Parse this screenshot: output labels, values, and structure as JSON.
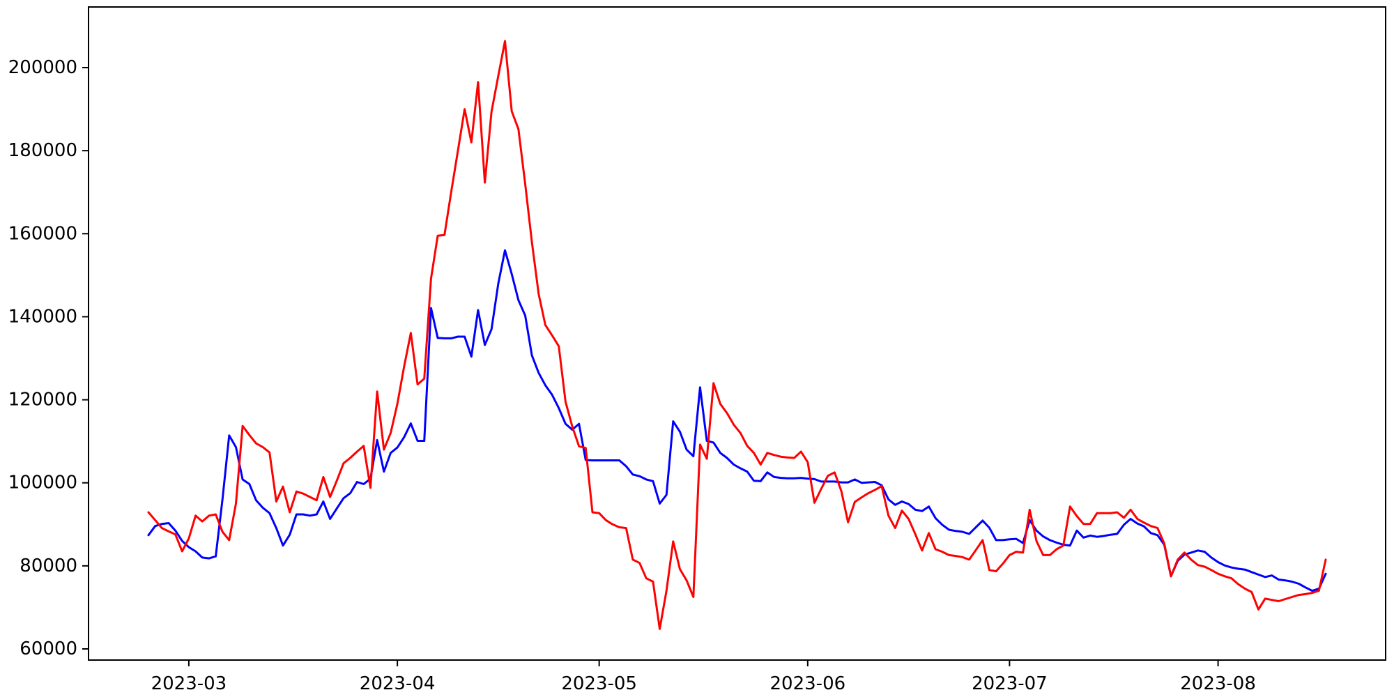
{
  "figure": {
    "background": "#ffffff",
    "frame_color": "#000000"
  },
  "chart_data": {
    "type": "line",
    "title": "",
    "xlabel": "",
    "ylabel": "",
    "grid": false,
    "legend": "none",
    "x_range": [
      "2023-02-23",
      "2023-08-17"
    ],
    "x_freq": "daily",
    "ylim": [
      55000,
      212000
    ],
    "y_ticks": [
      60000,
      80000,
      100000,
      120000,
      140000,
      160000,
      180000,
      200000
    ],
    "y_tick_labels": [
      "60000",
      "80000",
      "100000",
      "120000",
      "140000",
      "160000",
      "180000",
      "200000"
    ],
    "x_ticks": [
      {
        "label": "2023-03",
        "date": "2023-03-01"
      },
      {
        "label": "2023-04",
        "date": "2023-04-01"
      },
      {
        "label": "2023-05",
        "date": "2023-05-01"
      },
      {
        "label": "2023-06",
        "date": "2023-06-01"
      },
      {
        "label": "2023-07",
        "date": "2023-07-01"
      },
      {
        "label": "2023-08",
        "date": "2023-08-01"
      }
    ],
    "series": [
      {
        "name": "blue",
        "color": "#0000ff",
        "values": [
          87400,
          89600,
          90100,
          90300,
          88500,
          86000,
          84500,
          83500,
          82000,
          81800,
          82300,
          96000,
          111400,
          108600,
          100800,
          99700,
          95800,
          94000,
          92700,
          89100,
          84900,
          87500,
          92400,
          92400,
          92100,
          92400,
          95500,
          91300,
          93800,
          96300,
          97500,
          100200,
          99700,
          101000,
          110300,
          102700,
          107200,
          108500,
          111000,
          114300,
          110100,
          110100,
          142100,
          134900,
          134800,
          134800,
          135200,
          135200,
          130400,
          141600,
          133200,
          137000,
          148000,
          156000,
          150300,
          144000,
          140300,
          130700,
          126500,
          123500,
          121200,
          118000,
          114200,
          112800,
          114200,
          105500,
          105400,
          105400,
          105400,
          105400,
          105400,
          104000,
          102000,
          101600,
          100800,
          100400,
          95000,
          97100,
          114800,
          112300,
          108000,
          106400,
          123000,
          110100,
          109700,
          107200,
          106000,
          104400,
          103500,
          102700,
          100500,
          100400,
          102500,
          101400,
          101200,
          101100,
          101100,
          101200,
          101000,
          100900,
          100300,
          100300,
          100300,
          100100,
          100100,
          100800,
          100000,
          100100,
          100200,
          99400,
          96000,
          94700,
          95500,
          94900,
          93500,
          93200,
          94300,
          91500,
          89900,
          88700,
          88400,
          88200,
          87700,
          89300,
          90900,
          89200,
          86200,
          86200,
          86400,
          86500,
          85500,
          91000,
          88500,
          87100,
          86200,
          85600,
          85100,
          84900,
          88500,
          86800,
          87300,
          87000,
          87200,
          87500,
          87700,
          89900,
          91300,
          90200,
          89500,
          87900,
          87400,
          85100,
          77500,
          81200,
          82700,
          83200,
          83700,
          83400,
          82000,
          80900,
          80100,
          79600,
          79300,
          79100,
          78500,
          77900,
          77300,
          77700,
          76700,
          76500,
          76200,
          75700,
          74800,
          74000,
          74500,
          78100
        ]
      },
      {
        "name": "red",
        "color": "#ff0000",
        "values": [
          92900,
          91000,
          89100,
          88300,
          87600,
          83500,
          86600,
          92100,
          90700,
          92100,
          92400,
          88200,
          86200,
          95000,
          113700,
          111500,
          109500,
          108600,
          107300,
          95500,
          99100,
          92900,
          97900,
          97400,
          96600,
          95800,
          101400,
          96600,
          100500,
          104700,
          106000,
          107500,
          108900,
          98800,
          122000,
          108000,
          112000,
          119000,
          128000,
          136100,
          123700,
          125100,
          149200,
          159500,
          159700,
          170000,
          180000,
          190000,
          182000,
          196500,
          172300,
          189400,
          198000,
          206400,
          189500,
          185200,
          172000,
          158000,
          145500,
          138000,
          135500,
          132900,
          119500,
          113600,
          108800,
          108400,
          92900,
          92700,
          91000,
          90000,
          89300,
          89100,
          81500,
          80700,
          77000,
          76200,
          64800,
          74000,
          85900,
          79200,
          76500,
          72500,
          109200,
          105800,
          124000,
          119000,
          116800,
          114000,
          112000,
          108900,
          107200,
          104400,
          107200,
          106700,
          106300,
          106100,
          106000,
          107500,
          105000,
          95200,
          98500,
          101700,
          102500,
          98000,
          90500,
          95400,
          96500,
          97500,
          98300,
          99200,
          92100,
          89100,
          93300,
          91300,
          87600,
          83700,
          87900,
          84000,
          83400,
          82600,
          82400,
          82100,
          81500,
          83800,
          86200,
          79000,
          78700,
          80500,
          82600,
          83400,
          83200,
          93500,
          86000,
          82600,
          82600,
          84000,
          84900,
          94300,
          92000,
          90100,
          90100,
          92700,
          92700,
          92700,
          92900,
          91600,
          93500,
          91300,
          90400,
          89600,
          89100,
          85400,
          77500,
          81500,
          83200,
          81500,
          80200,
          79800,
          79000,
          78100,
          77500,
          77000,
          75600,
          74500,
          73700,
          69500,
          72100,
          71800,
          71500,
          72000,
          72500,
          73000,
          73200,
          73500,
          74000,
          81500
        ]
      }
    ]
  }
}
